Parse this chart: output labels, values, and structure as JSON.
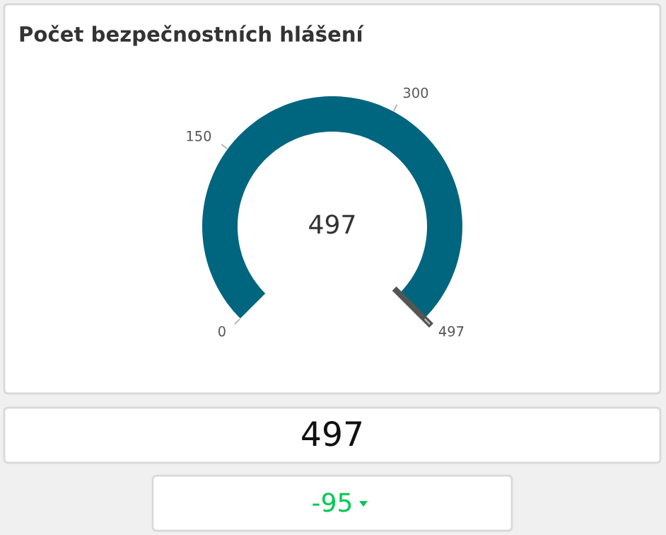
{
  "chart_data": [
    {
      "type": "pie",
      "title": "Počet bezpečnostních hlášení",
      "categories": [
        null
      ],
      "values": [
        100
      ],
      "colors": [
        "#00657f"
      ],
      "annotations": [
        "497",
        "0",
        "150",
        "300",
        "497"
      ]
    },
    {
      "type": "other",
      "annotations": [
        "497",
        "-95"
      ],
      "colors": [
        "#111111",
        "#00c853"
      ]
    }
  ]
}
